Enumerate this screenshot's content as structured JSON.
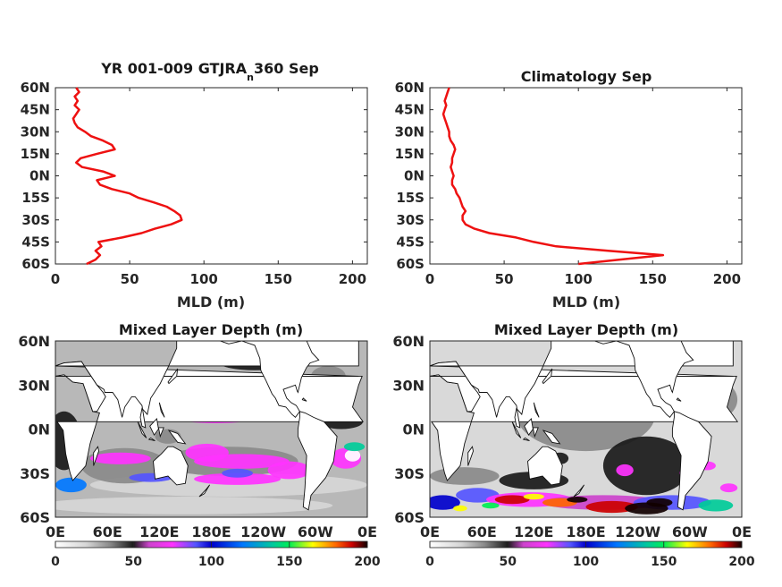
{
  "chart_data": [
    {
      "type": "line",
      "title": "YR 001-009 GTJRA",
      "title_subscript": "n",
      "title_suffix": "360 Sep",
      "xlabel": "MLD (m)",
      "xlim": [
        0,
        210
      ],
      "ylim": [
        -60,
        60
      ],
      "xticks": [
        "0",
        "50",
        "100",
        "150",
        "200"
      ],
      "yticks": [
        "60N",
        "45N",
        "30N",
        "15N",
        "0N",
        "15S",
        "30S",
        "45S",
        "60S"
      ],
      "line_color": "#ee1111",
      "series": [
        {
          "lat": [
            -60,
            -57,
            -54,
            -51,
            -48,
            -45,
            -42,
            -39,
            -36,
            -33,
            -30,
            -27,
            -24,
            -21,
            -18,
            -15,
            -12,
            -9,
            -6,
            -3,
            0,
            3,
            6,
            9,
            12,
            15,
            18,
            21,
            24,
            27,
            30,
            33,
            36,
            39,
            42,
            45,
            48,
            51,
            54,
            57,
            60
          ],
          "mld": [
            21,
            27,
            30,
            27,
            31,
            29,
            45,
            58,
            67,
            78,
            85,
            84,
            80,
            75,
            66,
            56,
            50,
            38,
            30,
            28,
            40,
            32,
            18,
            14,
            17,
            28,
            40,
            38,
            32,
            24,
            20,
            15,
            13,
            12,
            14,
            16,
            13,
            15,
            13,
            16,
            14
          ]
        }
      ]
    },
    {
      "type": "line",
      "title": "Climatology Sep",
      "xlabel": "MLD (m)",
      "xlim": [
        0,
        210
      ],
      "ylim": [
        -60,
        60
      ],
      "xticks": [
        "0",
        "50",
        "100",
        "150",
        "200"
      ],
      "yticks": [
        "60N",
        "45N",
        "30N",
        "15N",
        "0N",
        "15S",
        "30S",
        "45S",
        "60S"
      ],
      "line_color": "#ee1111",
      "series": [
        {
          "lat": [
            -60,
            -57,
            -54,
            -51,
            -48,
            -45,
            -42,
            -39,
            -36,
            -33,
            -30,
            -27,
            -24,
            -21,
            -18,
            -15,
            -12,
            -9,
            -6,
            -3,
            0,
            3,
            6,
            9,
            12,
            15,
            18,
            21,
            24,
            27,
            30,
            33,
            36,
            39,
            42,
            45,
            48,
            51,
            54,
            57,
            60
          ],
          "mld": [
            100,
            128,
            157,
            120,
            85,
            70,
            58,
            40,
            30,
            24,
            22,
            22,
            24,
            22,
            21,
            20,
            18,
            17,
            15,
            15,
            16,
            15,
            14,
            15,
            15,
            16,
            17,
            16,
            14,
            13,
            13,
            12,
            11,
            10,
            9,
            10,
            11,
            10,
            11,
            12,
            13
          ]
        }
      ]
    },
    {
      "type": "heatmap",
      "title": "Mixed Layer Depth (m)",
      "xticks": [
        "0E",
        "60E",
        "120E",
        "180E",
        "120W",
        "60W",
        "0E"
      ],
      "yticks": [
        "60N",
        "30N",
        "0N",
        "30S",
        "60S"
      ],
      "colorbar_ticks": [
        "0",
        "50",
        "100",
        "150",
        "200"
      ],
      "clim": [
        0,
        200
      ]
    },
    {
      "type": "heatmap",
      "title": "Mixed Layer Depth (m)",
      "xticks": [
        "0E",
        "60E",
        "120E",
        "180E",
        "120W",
        "60W",
        "0E"
      ],
      "yticks": [
        "60N",
        "30N",
        "0N",
        "30S",
        "60S"
      ],
      "colorbar_ticks": [
        "0",
        "50",
        "100",
        "150",
        "200"
      ],
      "clim": [
        0,
        200
      ]
    }
  ],
  "colormap": [
    [
      0,
      "#ffffff"
    ],
    [
      20,
      "#d6d6d6"
    ],
    [
      35,
      "#8a8a8a"
    ],
    [
      50,
      "#1a1a1a"
    ],
    [
      60,
      "#cc44cc"
    ],
    [
      75,
      "#ff33ff"
    ],
    [
      90,
      "#5555ff"
    ],
    [
      100,
      "#0000cc"
    ],
    [
      120,
      "#0077ff"
    ],
    [
      140,
      "#00cc99"
    ],
    [
      150,
      "#00ee55"
    ],
    [
      165,
      "#ffff00"
    ],
    [
      180,
      "#ff6600"
    ],
    [
      190,
      "#cc0000"
    ],
    [
      200,
      "#110000"
    ]
  ]
}
